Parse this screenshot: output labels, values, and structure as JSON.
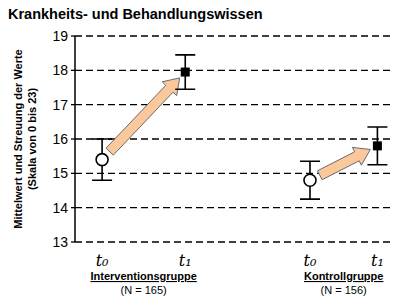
{
  "chart_data": {
    "type": "errorbar",
    "title": "Krankheits- und Behandlungswissen",
    "y_label": [
      "Mittelwert und Streuung der Werte",
      "(Skala von 0 bis 23)"
    ],
    "categories": [
      "t₀",
      "t₁",
      "t₀",
      "t₁"
    ],
    "groups": [
      {
        "label": "Interventionsgruppe",
        "size": "(N = 165)"
      },
      {
        "label": "Kontrollgruppe",
        "size": "(N = 156)"
      }
    ],
    "series": [
      {
        "marker": "circle",
        "color": "#000000",
        "values": [
          15.4,
          null,
          14.8,
          null
        ],
        "errors": [
          0.6,
          null,
          0.55,
          null
        ]
      },
      {
        "marker": "square",
        "color": "#000000",
        "values": [
          null,
          17.95,
          null,
          15.8
        ],
        "errors": [
          null,
          0.5,
          null,
          0.55
        ]
      }
    ],
    "ylim": [
      13,
      19
    ],
    "yticks": [
      13,
      14,
      15,
      16,
      17,
      18,
      19
    ],
    "grid": true
  }
}
